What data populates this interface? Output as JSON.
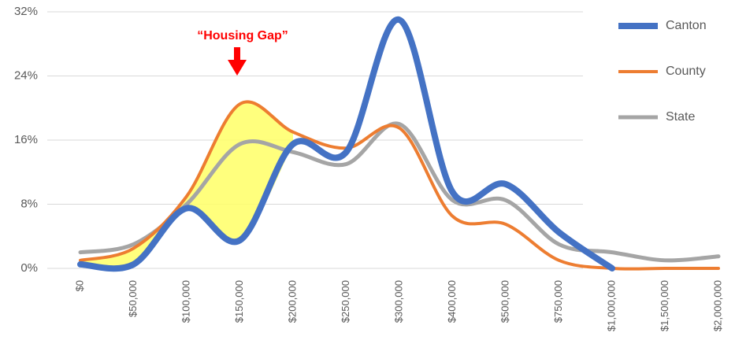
{
  "chart_data": {
    "type": "line",
    "annotation": "“Housing Gap”",
    "categories": [
      "$0",
      "$50,000",
      "$100,000",
      "$150,000",
      "$200,000",
      "$250,000",
      "$300,000",
      "$400,000",
      "$500,000",
      "$750,000",
      "$1,000,000",
      "$1,500,000",
      "$2,000,000"
    ],
    "series": [
      {
        "name": "Canton",
        "color": "#4472c4",
        "values": [
          0.5,
          0.5,
          7.5,
          3.5,
          15.5,
          14.5,
          31,
          9.5,
          10.5,
          4.5,
          0,
          null,
          null
        ]
      },
      {
        "name": "County",
        "color": "#ed7d31",
        "values": [
          1,
          2.5,
          9,
          20.5,
          17,
          15,
          17.5,
          6.5,
          5.5,
          1,
          0,
          0,
          0
        ]
      },
      {
        "name": "State",
        "color": "#a5a5a5",
        "values": [
          2,
          3,
          8,
          15.5,
          14.5,
          13,
          18,
          8.5,
          8.5,
          3,
          2,
          1,
          1.5
        ]
      }
    ],
    "ylim": [
      0,
      32
    ],
    "yticks": [
      {
        "value": 0,
        "label": "0%"
      },
      {
        "value": 8,
        "label": "8%"
      },
      {
        "value": 16,
        "label": "16%"
      },
      {
        "value": 24,
        "label": "24%"
      },
      {
        "value": 32,
        "label": "32%"
      }
    ],
    "grid": true,
    "legend": "right"
  }
}
